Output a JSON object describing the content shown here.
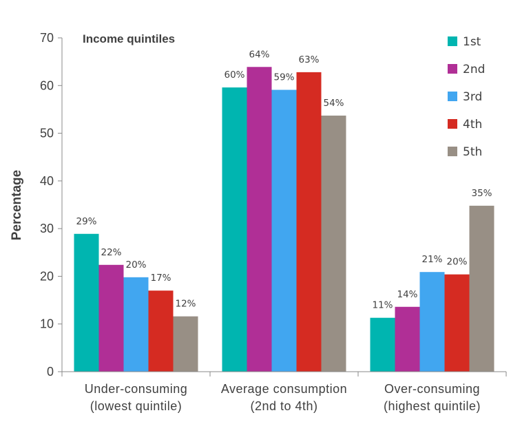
{
  "chart_data": {
    "type": "bar",
    "title": "",
    "subtitle": "Income quintiles",
    "xlabel": "",
    "ylabel": "Percentage",
    "ylim": [
      0,
      70
    ],
    "yticks": [
      0,
      10,
      20,
      30,
      40,
      50,
      60,
      70
    ],
    "grid": false,
    "legend_position": "top-right",
    "categories": [
      [
        "Under-consuming",
        "(lowest quintile)"
      ],
      [
        "Average consumption",
        "(2nd to 4th)"
      ],
      [
        "Over-consuming",
        "(highest quintile)"
      ]
    ],
    "series": [
      {
        "name": "1st",
        "color": "#00b5b0",
        "values": [
          28.9,
          59.6,
          11.3
        ],
        "labels": [
          "29%",
          "60%",
          "11%"
        ]
      },
      {
        "name": "2nd",
        "color": "#b02f96",
        "values": [
          22.4,
          63.9,
          13.6
        ],
        "labels": [
          "22%",
          "64%",
          "14%"
        ]
      },
      {
        "name": "3rd",
        "color": "#41a6f0",
        "values": [
          19.8,
          59.1,
          20.9
        ],
        "labels": [
          "20%",
          "59%",
          "21%"
        ]
      },
      {
        "name": "4th",
        "color": "#d52b22",
        "values": [
          17.0,
          62.8,
          20.4
        ],
        "labels": [
          "17%",
          "63%",
          "20%"
        ]
      },
      {
        "name": "5th",
        "color": "#988f85",
        "values": [
          11.6,
          53.7,
          34.8
        ],
        "labels": [
          "12%",
          "54%",
          "35%"
        ]
      }
    ]
  }
}
